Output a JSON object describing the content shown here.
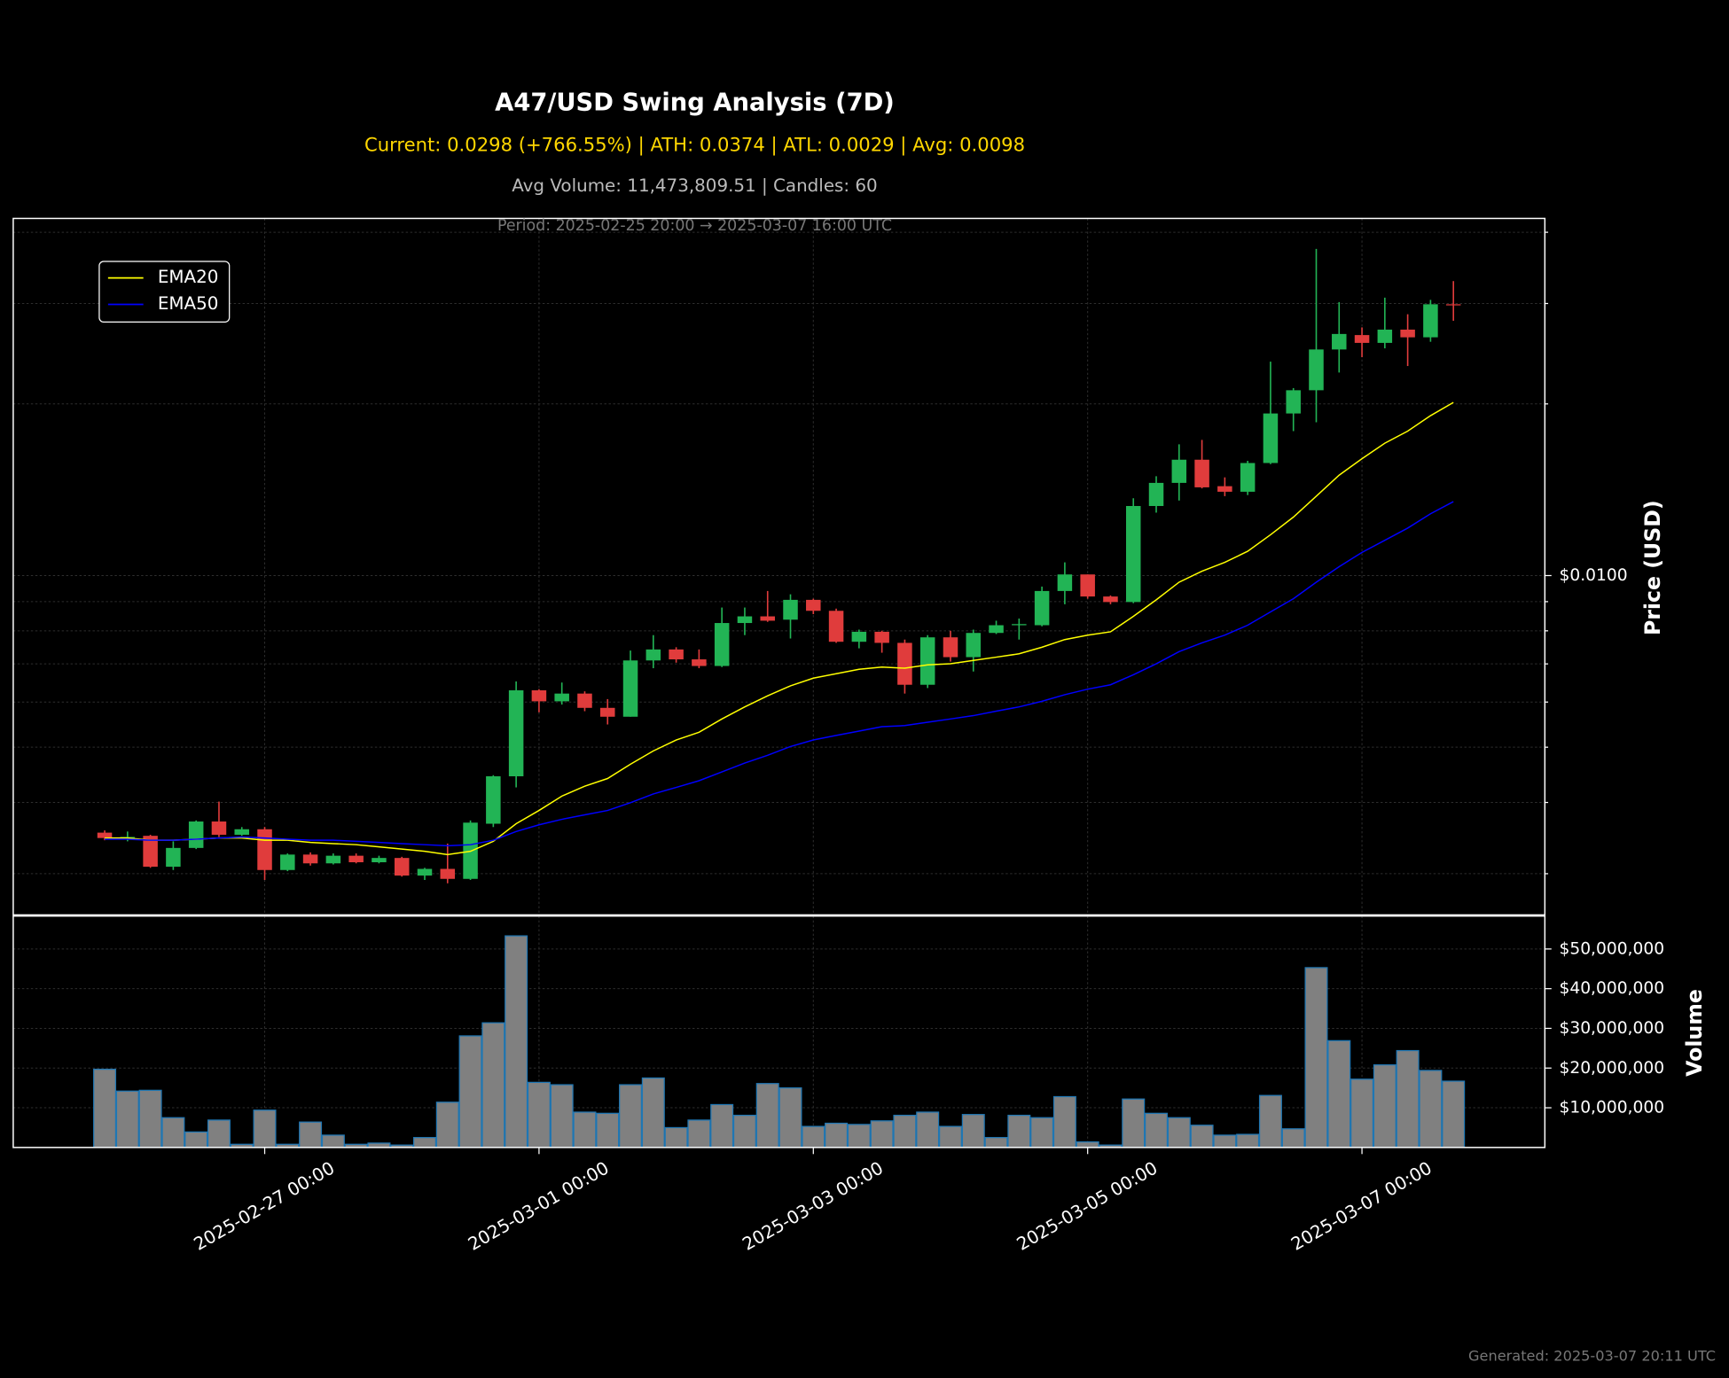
{
  "chart_data": {
    "type": "candlestick",
    "title": "A47/USD Swing Analysis (7D)",
    "subtitle": "Current: 0.0298 (+766.55%) | ATH: 0.0374 | ATL: 0.0029 | Avg: 0.0098",
    "info": "Avg Volume: 11,473,809.51 | Candles: 60",
    "period": "Period: 2025-02-25 20:00 → 2025-03-07 16:00 UTC",
    "footer": "Generated: 2025-03-07 20:11 UTC",
    "ylabel": "Price (USD)",
    "log_scale": true,
    "grid": true,
    "legend": "upper left",
    "up_color": "#22b455",
    "down_color": "#e03c3c",
    "x": [
      "2025-02-25 20:00",
      "2025-02-26 00:00",
      "2025-02-26 04:00",
      "2025-02-26 08:00",
      "2025-02-26 12:00",
      "2025-02-26 16:00",
      "2025-02-26 20:00",
      "2025-02-27 00:00",
      "2025-02-27 04:00",
      "2025-02-27 08:00",
      "2025-02-27 12:00",
      "2025-02-27 16:00",
      "2025-02-27 20:00",
      "2025-02-28 00:00",
      "2025-02-28 04:00",
      "2025-02-28 08:00",
      "2025-02-28 12:00",
      "2025-02-28 16:00",
      "2025-02-28 20:00",
      "2025-03-01 00:00",
      "2025-03-01 04:00",
      "2025-03-01 08:00",
      "2025-03-01 12:00",
      "2025-03-01 16:00",
      "2025-03-01 20:00",
      "2025-03-02 00:00",
      "2025-03-02 04:00",
      "2025-03-02 08:00",
      "2025-03-02 12:00",
      "2025-03-02 16:00",
      "2025-03-02 20:00",
      "2025-03-03 00:00",
      "2025-03-03 04:00",
      "2025-03-03 08:00",
      "2025-03-03 12:00",
      "2025-03-03 16:00",
      "2025-03-03 20:00",
      "2025-03-04 00:00",
      "2025-03-04 04:00",
      "2025-03-04 08:00",
      "2025-03-04 12:00",
      "2025-03-04 16:00",
      "2025-03-04 20:00",
      "2025-03-05 00:00",
      "2025-03-05 04:00",
      "2025-03-05 08:00",
      "2025-03-05 12:00",
      "2025-03-05 16:00",
      "2025-03-05 20:00",
      "2025-03-06 00:00",
      "2025-03-06 04:00",
      "2025-03-06 08:00",
      "2025-03-06 12:00",
      "2025-03-06 16:00",
      "2025-03-06 20:00",
      "2025-03-07 00:00",
      "2025-03-07 04:00",
      "2025-03-07 08:00",
      "2025-03-07 12:00",
      "2025-03-07 16:00"
    ],
    "open": [
      0.003541,
      0.003465,
      0.003496,
      0.003086,
      0.003329,
      0.003704,
      0.003511,
      0.00359,
      0.003045,
      0.003241,
      0.003128,
      0.003226,
      0.003142,
      0.003197,
      0.002978,
      0.003059,
      0.002938,
      0.003671,
      0.004446,
      0.006292,
      0.006018,
      0.006209,
      0.005861,
      0.005655,
      0.007098,
      0.00742,
      0.007129,
      0.006941,
      0.008256,
      0.008481,
      0.008368,
      0.009066,
      0.008673,
      0.007654,
      0.007969,
      0.00762,
      0.006434,
      0.007792,
      0.007193,
      0.007932,
      0.008183,
      0.008183,
      0.009396,
      0.010045,
      0.009189,
      0.008986,
      0.013243,
      0.014539,
      0.015965,
      0.014346,
      0.014028,
      0.015753,
      0.019242,
      0.021135,
      0.024917,
      0.02641,
      0.02559,
      0.026998,
      0.026173,
      0.029907
    ],
    "high": [
      0.003573,
      0.003557,
      0.003511,
      0.003419,
      0.00372,
      0.004014,
      0.003622,
      0.003622,
      0.003256,
      0.00327,
      0.003256,
      0.003256,
      0.003226,
      0.003212,
      0.003072,
      0.003388,
      0.00372,
      0.004466,
      0.006521,
      0.006321,
      0.006492,
      0.006265,
      0.006072,
      0.007387,
      0.007862,
      0.007487,
      0.00742,
      0.008789,
      0.008789,
      0.009396,
      0.009271,
      0.009108,
      0.00875,
      0.008038,
      0.008003,
      0.007722,
      0.007862,
      0.008003,
      0.008038,
      0.008333,
      0.008406,
      0.009565,
      0.010548,
      0.010045,
      0.00923,
      0.013661,
      0.014935,
      0.016989,
      0.017294,
      0.014867,
      0.015895,
      0.023723,
      0.021321,
      0.0374,
      0.030177,
      0.027241,
      0.030718,
      0.028727,
      0.030445,
      0.03284
    ],
    "low": [
      0.003434,
      0.003419,
      0.003072,
      0.003045,
      0.003314,
      0.00348,
      0.003496,
      0.002925,
      0.003031,
      0.0031,
      0.003114,
      0.003128,
      0.003128,
      0.002965,
      0.002925,
      0.002886,
      0.002925,
      0.003622,
      0.004251,
      0.005757,
      0.00594,
      0.005783,
      0.005481,
      0.005655,
      0.006879,
      0.007035,
      0.006879,
      0.006911,
      0.007862,
      0.008295,
      0.007756,
      0.008557,
      0.00762,
      0.007454,
      0.007323,
      0.006209,
      0.006349,
      0.007065,
      0.006788,
      0.007897,
      0.007722,
      0.008147,
      0.008906,
      0.009108,
      0.008906,
      0.008946,
      0.012893,
      0.013539,
      0.014218,
      0.01378,
      0.013841,
      0.015683,
      0.01792,
      0.018571,
      0.022699,
      0.024155,
      0.02503,
      0.023306,
      0.025704,
      0.02798
    ],
    "close": [
      0.003465,
      0.00348,
      0.003086,
      0.003329,
      0.003704,
      0.003511,
      0.00359,
      0.003045,
      0.003241,
      0.003128,
      0.003226,
      0.003142,
      0.003197,
      0.002978,
      0.003059,
      0.002938,
      0.003687,
      0.004446,
      0.006292,
      0.006018,
      0.006209,
      0.005861,
      0.005655,
      0.007098,
      0.00742,
      0.007129,
      0.006941,
      0.008256,
      0.008481,
      0.008333,
      0.009066,
      0.008673,
      0.007654,
      0.007969,
      0.00762,
      0.006434,
      0.007792,
      0.007193,
      0.007932,
      0.008183,
      0.00822,
      0.009396,
      0.010045,
      0.009189,
      0.008986,
      0.013243,
      0.014539,
      0.015965,
      0.01428,
      0.014028,
      0.015753,
      0.019242,
      0.021135,
      0.024917,
      0.026527,
      0.02559,
      0.026998,
      0.026173,
      0.029907,
      0.0298
    ],
    "series": [
      {
        "name": "EMA20",
        "color": "#ffff00",
        "values": [
          0.003465,
          0.003465,
          0.003434,
          0.003434,
          0.003449,
          0.003465,
          0.003465,
          0.003434,
          0.003434,
          0.003404,
          0.003388,
          0.003373,
          0.003343,
          0.003314,
          0.003284,
          0.003241,
          0.003284,
          0.003419,
          0.003671,
          0.003873,
          0.004104,
          0.004272,
          0.004406,
          0.004668,
          0.004926,
          0.005148,
          0.005311,
          0.005604,
          0.005884,
          0.006154,
          0.006406,
          0.006608,
          0.006728,
          0.006849,
          0.006911,
          0.006879,
          0.006972,
          0.007003,
          0.007098,
          0.007193,
          0.007291,
          0.007487,
          0.007722,
          0.007862,
          0.007969,
          0.008481,
          0.009066,
          0.009736,
          0.010179,
          0.010548,
          0.01103,
          0.011791,
          0.012663,
          0.01378,
          0.014997,
          0.016032,
          0.017065,
          0.01792,
          0.019074,
          0.020119
        ]
      },
      {
        "name": "EMA50",
        "color": "#0000ff",
        "values": [
          0.003449,
          0.003449,
          0.003434,
          0.003434,
          0.003449,
          0.003465,
          0.00348,
          0.003465,
          0.003449,
          0.003434,
          0.003434,
          0.003419,
          0.003404,
          0.003388,
          0.003373,
          0.003358,
          0.003373,
          0.003434,
          0.003557,
          0.003655,
          0.003737,
          0.003805,
          0.003873,
          0.003996,
          0.00414,
          0.004251,
          0.004367,
          0.004525,
          0.00469,
          0.004839,
          0.005014,
          0.005148,
          0.005243,
          0.005336,
          0.005432,
          0.005456,
          0.00553,
          0.005604,
          0.00568,
          0.005783,
          0.005884,
          0.006018,
          0.006181,
          0.006321,
          0.006434,
          0.0067,
          0.007003,
          0.007355,
          0.00762,
          0.007862,
          0.008183,
          0.008634,
          0.009108,
          0.009736,
          0.010363,
          0.01098,
          0.011531,
          0.012112,
          0.012834,
          0.013478
        ]
      }
    ],
    "xlim": [
      "2025-02-25 04:00",
      "2025-03-08 08:00"
    ],
    "xticks": [
      "2025-02-27 00:00",
      "2025-03-01 00:00",
      "2025-03-03 00:00",
      "2025-03-05 00:00",
      "2025-03-07 00:00"
    ],
    "ylim": [
      0.00254,
      0.0423
    ],
    "yticks": [
      {
        "value": 0.01,
        "label": "$0.0100"
      }
    ],
    "minor_yticks": [
      0.003,
      0.004,
      0.005,
      0.006,
      0.007,
      0.008,
      0.009,
      0.02,
      0.03,
      0.04
    ],
    "volume": {
      "ylabel": "Volume",
      "color": "#808080",
      "edgecolor": "#1f77b4",
      "values": [
        19700000,
        14200000,
        14400000,
        7500000,
        3900000,
        6900000,
        800000,
        9400000,
        800000,
        6400000,
        3100000,
        800000,
        1100000,
        600000,
        2500000,
        11400000,
        28100000,
        31400000,
        53300000,
        16400000,
        15800000,
        8900000,
        8600000,
        15800000,
        17500000,
        5000000,
        6900000,
        10800000,
        8100000,
        16100000,
        15000000,
        5300000,
        6100000,
        5800000,
        6700000,
        8100000,
        8900000,
        5300000,
        8300000,
        2500000,
        8100000,
        7500000,
        12800000,
        1400000,
        600000,
        12200000,
        8600000,
        7500000,
        5600000,
        3100000,
        3300000,
        13100000,
        4700000,
        45300000,
        26900000,
        17200000,
        20800000,
        24400000,
        19400000,
        16700000
      ],
      "ylim": [
        0,
        58300000
      ],
      "yticks": [
        {
          "value": 10000000,
          "label": "$10,000,000"
        },
        {
          "value": 20000000,
          "label": "$20,000,000"
        },
        {
          "value": 30000000,
          "label": "$30,000,000"
        },
        {
          "value": 40000000,
          "label": "$40,000,000"
        },
        {
          "value": 50000000,
          "label": "$50,000,000"
        }
      ]
    }
  }
}
